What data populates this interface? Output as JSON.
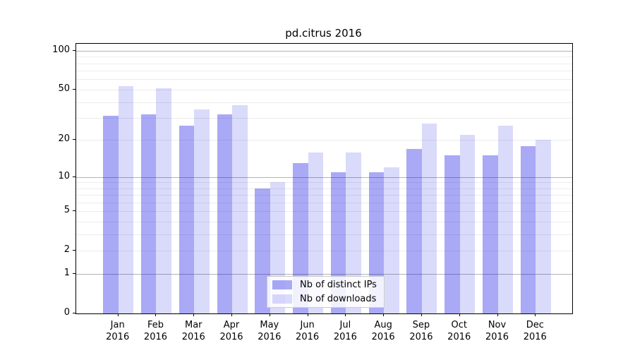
{
  "chart_data": {
    "type": "bar",
    "title": "pd.citrus 2016",
    "categories": [
      {
        "month": "Jan",
        "year": "2016"
      },
      {
        "month": "Feb",
        "year": "2016"
      },
      {
        "month": "Mar",
        "year": "2016"
      },
      {
        "month": "Apr",
        "year": "2016"
      },
      {
        "month": "May",
        "year": "2016"
      },
      {
        "month": "Jun",
        "year": "2016"
      },
      {
        "month": "Jul",
        "year": "2016"
      },
      {
        "month": "Aug",
        "year": "2016"
      },
      {
        "month": "Sep",
        "year": "2016"
      },
      {
        "month": "Oct",
        "year": "2016"
      },
      {
        "month": "Nov",
        "year": "2016"
      },
      {
        "month": "Dec",
        "year": "2016"
      }
    ],
    "series": [
      {
        "name": "Nb of distinct IPs",
        "color": "rgba(10,10,228,0.35)",
        "color_hex_on_white": "#a9a9f5",
        "values": [
          31,
          32,
          26,
          32,
          8,
          13,
          11,
          11,
          17,
          15,
          15,
          18
        ]
      },
      {
        "name": "Nb of downloads",
        "color": "rgba(10,10,228,0.15)",
        "color_hex_on_white": "#d9d9f8",
        "values": [
          53,
          51,
          35,
          38,
          9,
          16,
          16,
          12,
          27,
          22,
          26,
          20
        ]
      }
    ],
    "y_axis": {
      "scale": "log1p",
      "tick_labels": [
        "0",
        "1",
        "2",
        "5",
        "10",
        "20",
        "50",
        "100"
      ],
      "tick_values": [
        0,
        1,
        2,
        5,
        10,
        20,
        50,
        100
      ],
      "major_gridlines": [
        1,
        10,
        100
      ],
      "minor_gridlines": [
        2,
        3,
        4,
        5,
        6,
        7,
        8,
        9,
        20,
        30,
        40,
        50,
        60,
        70,
        80,
        90
      ],
      "ylim": [
        0,
        112
      ]
    },
    "legend": {
      "position": "bottom-center",
      "entries": [
        "Nb of distinct IPs",
        "Nb of downloads"
      ]
    },
    "grid": true
  },
  "colors": {
    "background": "#ffffff",
    "spine": "#000000",
    "major_grid": "#b3b3b3",
    "minor_grid": "#ececec",
    "text": "#000000"
  }
}
